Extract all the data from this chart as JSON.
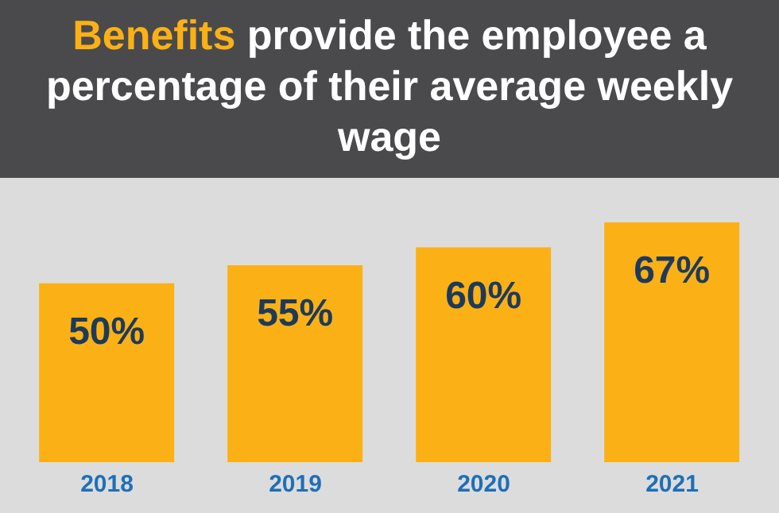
{
  "chart_data": {
    "type": "bar",
    "title": "Benefits provide the employee a percentage of their average weekly wage",
    "categories": [
      "2018",
      "2019",
      "2020",
      "2021"
    ],
    "values": [
      50,
      55,
      60,
      67
    ],
    "color": "#fbb116",
    "value_labels": [
      "50%",
      "55%",
      "60%",
      "67%"
    ]
  }
}
